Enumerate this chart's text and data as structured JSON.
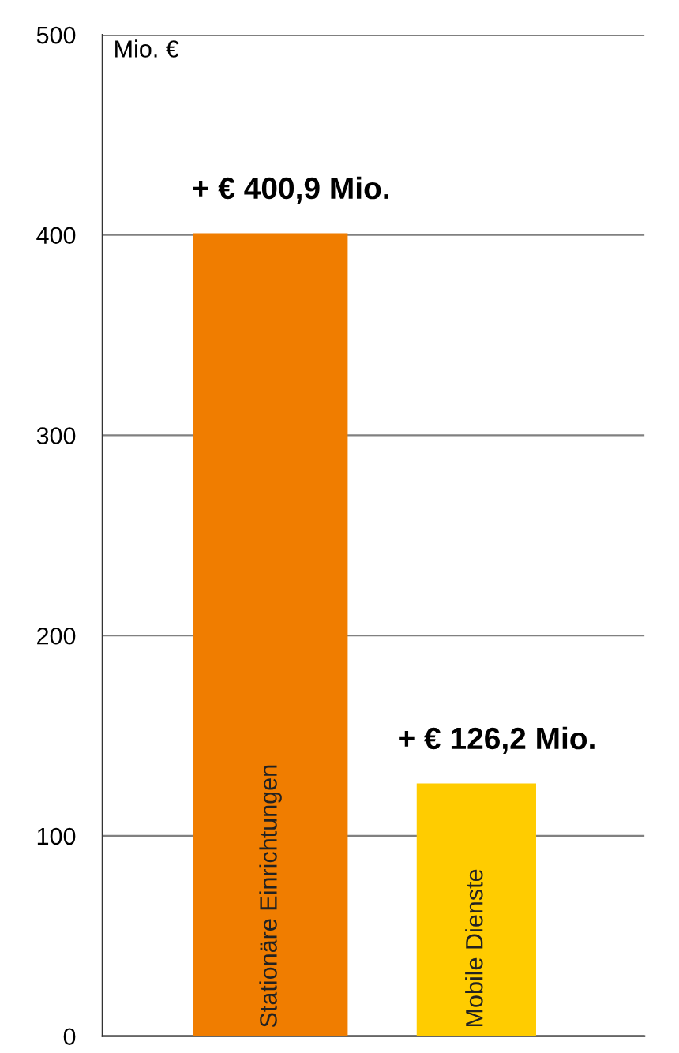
{
  "chart_data": {
    "type": "bar",
    "ylabel": "Mio. €",
    "categories": [
      "Stationäre Einrichtungen",
      "Mobile Dienste"
    ],
    "values": [
      400.9,
      126.2
    ],
    "colors": [
      "#f07d00",
      "#ffcc00"
    ],
    "value_labels": [
      "+ € 400,9 Mio.",
      "+ € 126,2 Mio."
    ],
    "ylim": [
      0,
      500
    ],
    "yticks": [
      0,
      100,
      200,
      300,
      400,
      500
    ],
    "grid": "y",
    "tick_labels": "y"
  }
}
